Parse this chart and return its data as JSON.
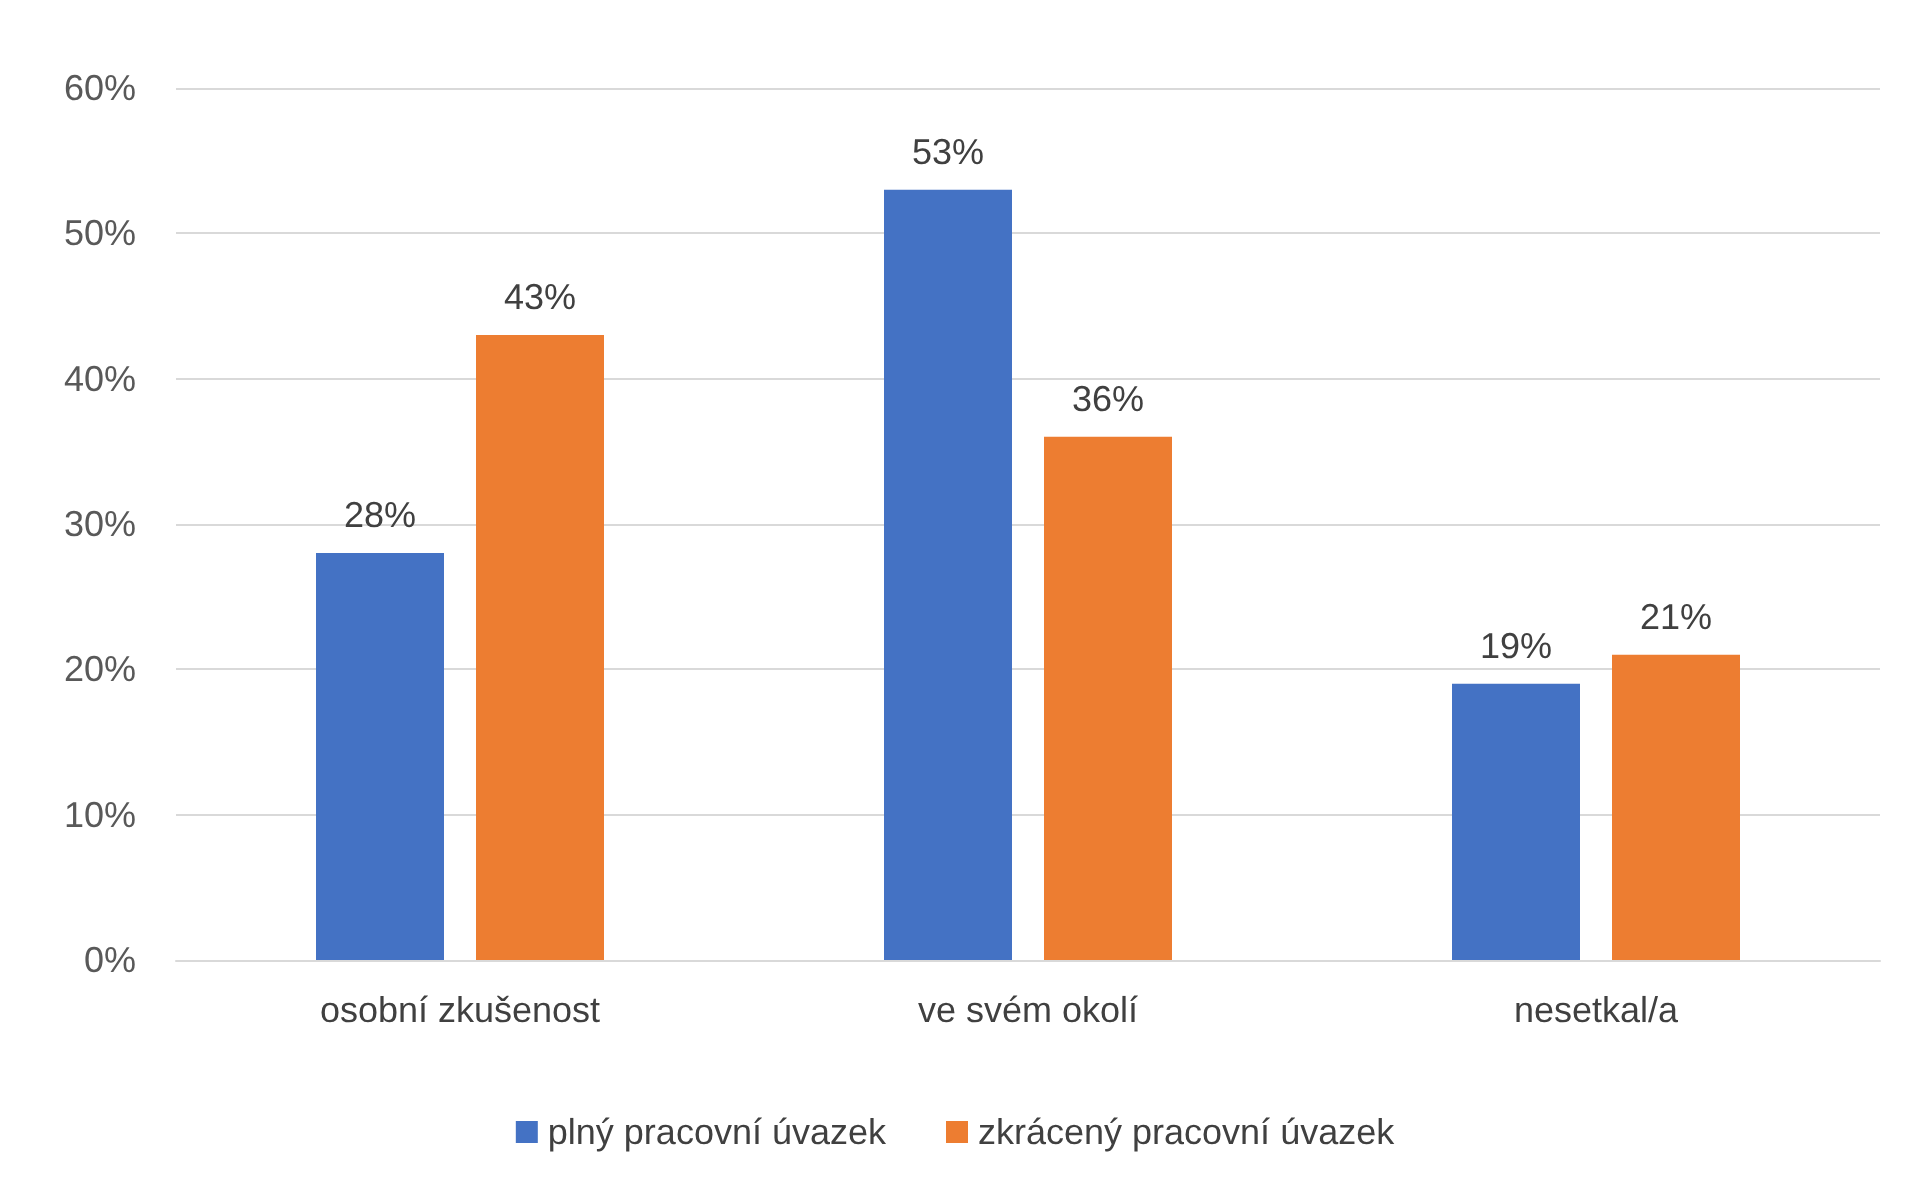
{
  "chart_data": {
    "type": "bar",
    "categories": [
      "osobní zkušenost",
      "ve svém okolí",
      "nesetkal/a"
    ],
    "series": [
      {
        "name": "plný pracovní úvazek",
        "color": "#4472c4",
        "values": [
          28,
          53,
          19
        ],
        "value_labels": [
          "28%",
          "53%",
          "19%"
        ]
      },
      {
        "name": "zkrácený pracovní úvazek",
        "color": "#ed7d31",
        "values": [
          43,
          36,
          21
        ],
        "value_labels": [
          "43%",
          "36%",
          "21%"
        ]
      }
    ],
    "ylim": [
      0,
      60
    ],
    "yticks": [
      {
        "value": 0,
        "label": "0%"
      },
      {
        "value": 10,
        "label": "10%"
      },
      {
        "value": 20,
        "label": "20%"
      },
      {
        "value": 30,
        "label": "30%"
      },
      {
        "value": 40,
        "label": "40%"
      },
      {
        "value": 50,
        "label": "50%"
      },
      {
        "value": 60,
        "label": "60%"
      }
    ],
    "grid": "y",
    "legend": "bottom"
  }
}
